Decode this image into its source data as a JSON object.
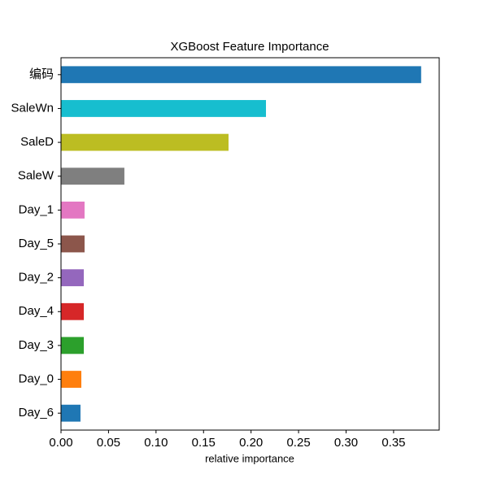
{
  "chart_data": {
    "type": "barh",
    "title": "XGBoost Feature Importance",
    "x_label": "relative importance",
    "categories": [
      "编码",
      "SaleWn",
      "SaleD",
      "SaleW",
      "Day_1",
      "Day_5",
      "Day_2",
      "Day_4",
      "Day_3",
      "Day_0",
      "Day_6"
    ],
    "values": [
      0.379,
      0.2157,
      0.1763,
      0.0667,
      0.0248,
      0.0248,
      0.024,
      0.024,
      0.024,
      0.0214,
      0.0205
    ],
    "colors": [
      "#1f77b4",
      "#17becf",
      "#bcbd22",
      "#7f7f7f",
      "#e377c2",
      "#8c564b",
      "#9467bd",
      "#d62728",
      "#2ca02c",
      "#ff7f0e",
      "#1f77b4"
    ],
    "xlim": [
      0,
      0.398
    ],
    "xticks": [
      {
        "value": 0,
        "label": "0.00"
      },
      {
        "value": 0.05,
        "label": "0.05"
      },
      {
        "value": 0.1,
        "label": "0.10"
      },
      {
        "value": 0.15,
        "label": "0.15"
      },
      {
        "value": 0.2,
        "label": "0.20"
      },
      {
        "value": 0.25,
        "label": "0.25"
      },
      {
        "value": 0.3,
        "label": "0.30"
      },
      {
        "value": 0.35,
        "label": "0.35"
      }
    ],
    "grid": false
  }
}
